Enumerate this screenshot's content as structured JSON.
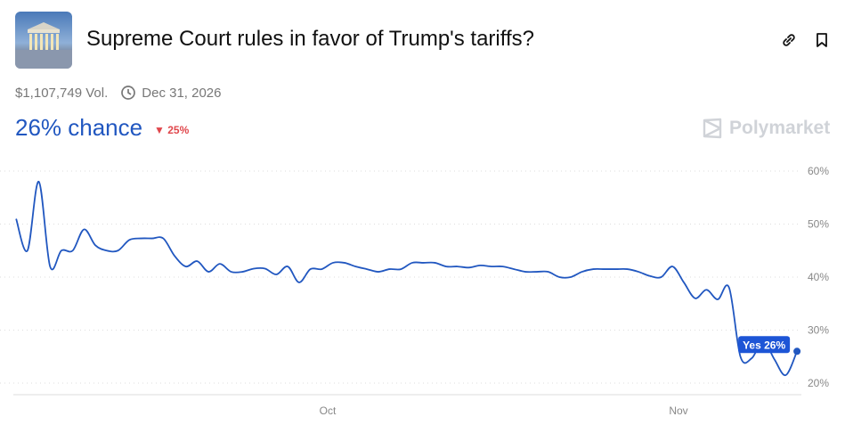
{
  "header": {
    "title": "Supreme Court rules in favor of Trump's tariffs?",
    "volume": "$1,107,749 Vol.",
    "end_date": "Dec 31, 2026",
    "chance": "26% chance",
    "change": "25%",
    "change_direction": "down",
    "brand": "Polymarket",
    "icons": [
      "link-icon",
      "bookmark-icon",
      "clock-icon",
      "triangle-down-icon",
      "polymarket-logo-icon"
    ]
  },
  "colors": {
    "line": "#2157c0",
    "accent": "#2157c0",
    "down": "#e0474c"
  },
  "chart_data": {
    "type": "line",
    "ylim": [
      20,
      60
    ],
    "yticks": [
      "20%",
      "30%",
      "40%",
      "50%",
      "60%"
    ],
    "xticks": [
      {
        "label": "Oct",
        "date": "2025-10-01"
      },
      {
        "label": "Nov",
        "date": "2025-11-01"
      }
    ],
    "grid": "horizontal-dotted",
    "tooltip": "Yes 26%",
    "series": [
      {
        "name": "Yes",
        "x": [
          "09-03",
          "09-04",
          "09-05",
          "09-06",
          "09-07",
          "09-08",
          "09-09",
          "09-10",
          "09-11",
          "09-12",
          "09-13",
          "09-14",
          "09-15",
          "09-16",
          "09-17",
          "09-18",
          "09-19",
          "09-20",
          "09-21",
          "09-22",
          "09-23",
          "09-24",
          "09-25",
          "09-26",
          "09-27",
          "09-28",
          "09-29",
          "09-30",
          "10-01",
          "10-02",
          "10-03",
          "10-04",
          "10-05",
          "10-06",
          "10-07",
          "10-08",
          "10-09",
          "10-10",
          "10-11",
          "10-12",
          "10-13",
          "10-14",
          "10-15",
          "10-16",
          "10-17",
          "10-18",
          "10-19",
          "10-20",
          "10-21",
          "10-22",
          "10-23",
          "10-24",
          "10-25",
          "10-26",
          "10-27",
          "10-28",
          "10-29",
          "10-30",
          "10-31",
          "11-01",
          "11-02",
          "11-03",
          "11-04",
          "11-05",
          "11-06",
          "11-07",
          "11-08",
          "11-09",
          "11-10",
          "11-11"
        ],
        "values": [
          51,
          45,
          58,
          42,
          45,
          45,
          49,
          46,
          45,
          45,
          47,
          47.3,
          47.3,
          47.3,
          44,
          42,
          43,
          41,
          42.5,
          41,
          41,
          41.6,
          41.6,
          40.5,
          42,
          39,
          41.5,
          41.5,
          42.7,
          42.7,
          42,
          41.5,
          41,
          41.5,
          41.5,
          42.7,
          42.7,
          42.7,
          42,
          42,
          41.8,
          42.2,
          42,
          42,
          41.5,
          41,
          41,
          41,
          40,
          40,
          41,
          41.5,
          41.5,
          41.5,
          41.5,
          41,
          40.2,
          40,
          42,
          39,
          36,
          37.6,
          35.8,
          38,
          25,
          24.7,
          28,
          24.5,
          21.5,
          26
        ]
      }
    ]
  }
}
